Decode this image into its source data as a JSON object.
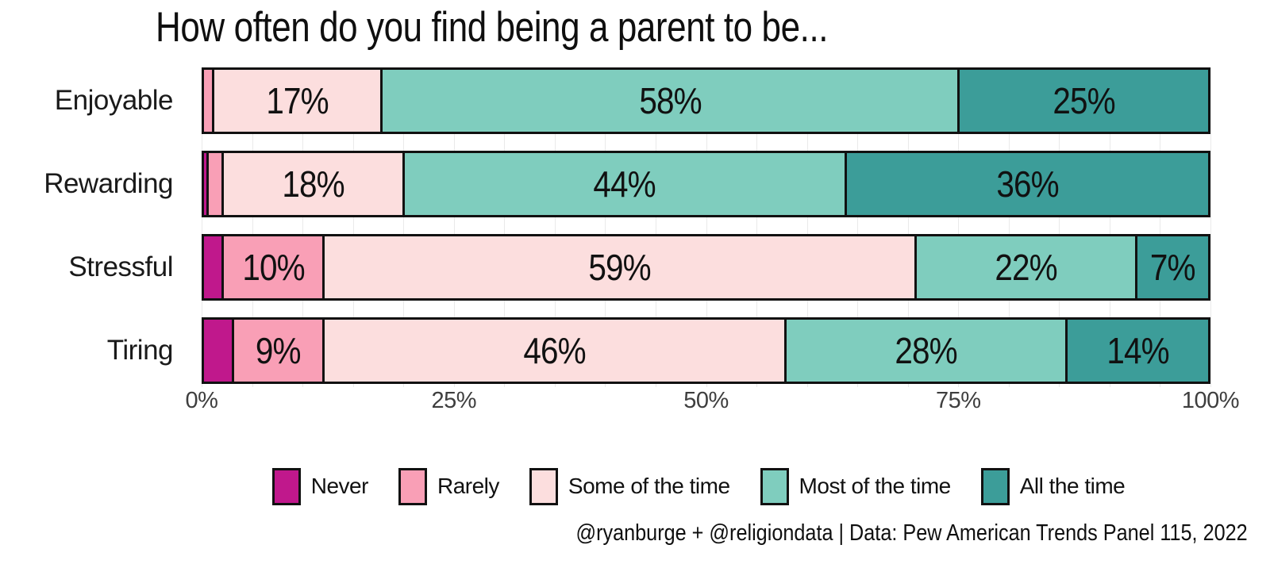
{
  "caption": "@ryanburge + @religiondata | Data: Pew American Trends Panel 115, 2022",
  "chart_data": {
    "type": "bar",
    "stacked": true,
    "orientation": "horizontal",
    "title": "How often do you find being a parent to be...",
    "xlabel": "",
    "ylabel": "",
    "xlim": [
      0,
      100
    ],
    "x_ticks": [
      "0%",
      "25%",
      "50%",
      "75%",
      "100%"
    ],
    "grid": "faint vertical lines every 5%",
    "legend_position": "bottom",
    "categories": [
      "Enjoyable",
      "Rewarding",
      "Stressful",
      "Tiring"
    ],
    "legend": [
      {
        "name": "Never",
        "color": "#C0188C"
      },
      {
        "name": "Rarely",
        "color": "#F99FB6"
      },
      {
        "name": "Some of the time",
        "color": "#FCDEDE"
      },
      {
        "name": "Most of the time",
        "color": "#7FCDBE"
      },
      {
        "name": "All the time",
        "color": "#3C9D99"
      }
    ],
    "series": [
      {
        "name": "Never",
        "values": [
          0,
          0.5,
          2,
          3
        ]
      },
      {
        "name": "Rarely",
        "values": [
          1,
          1.5,
          10,
          9
        ]
      },
      {
        "name": "Some of the time",
        "values": [
          17,
          18,
          59,
          46
        ]
      },
      {
        "name": "Most of the time",
        "values": [
          58,
          44,
          22,
          28
        ]
      },
      {
        "name": "All the time",
        "values": [
          25,
          36,
          7,
          14
        ]
      }
    ],
    "bar_labels": [
      [
        "",
        "",
        "17%",
        "58%",
        "25%"
      ],
      [
        "",
        "",
        "18%",
        "44%",
        "36%"
      ],
      [
        "",
        "10%",
        "59%",
        "22%",
        "7%"
      ],
      [
        "",
        "9%",
        "46%",
        "28%",
        "14%"
      ]
    ]
  }
}
